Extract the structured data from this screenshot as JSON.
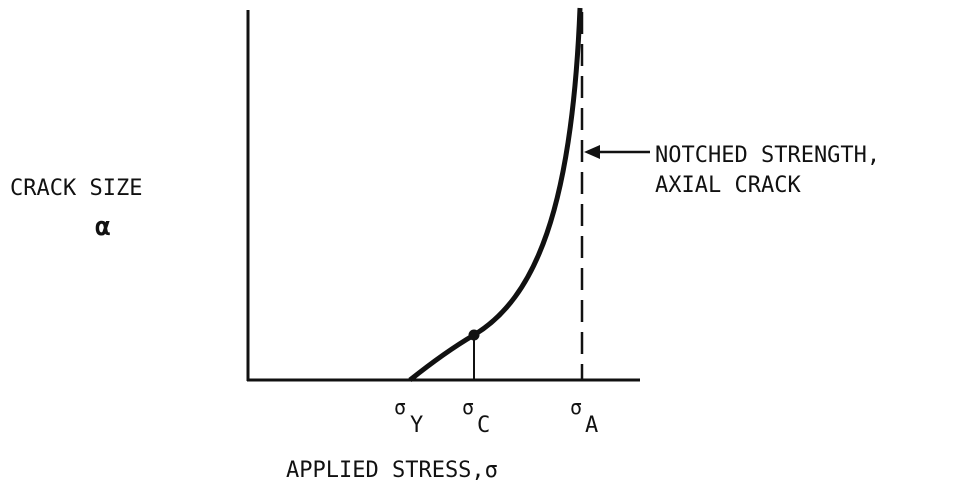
{
  "axes": {
    "y_label": "CRACK SIZE",
    "y_symbol": "α",
    "x_label": "APPLIED STRESS,σ"
  },
  "annotation": {
    "lines": [
      "NOTCHED STRENGTH,",
      "AXIAL CRACK"
    ]
  },
  "stress_marks": [
    {
      "symbol": "σ",
      "subscript": "Y"
    },
    {
      "symbol": "σ",
      "subscript": "C"
    },
    {
      "symbol": "σ",
      "subscript": "A"
    }
  ]
}
